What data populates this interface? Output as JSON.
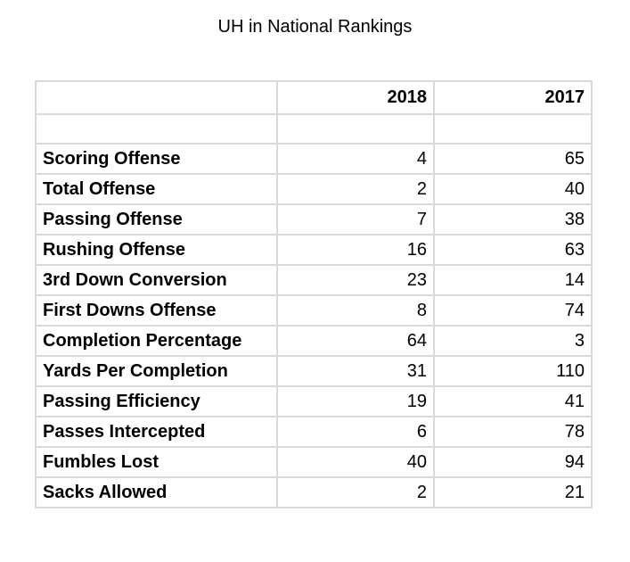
{
  "chart_data": {
    "type": "table",
    "title": "UH in National Rankings",
    "columns": [
      "",
      "2018",
      "2017"
    ],
    "rows": [
      {
        "label": "Scoring Offense",
        "v2018": 4,
        "v2017": 65
      },
      {
        "label": "Total Offense",
        "v2018": 2,
        "v2017": 40
      },
      {
        "label": "Passing Offense",
        "v2018": 7,
        "v2017": 38
      },
      {
        "label": "Rushing Offense",
        "v2018": 16,
        "v2017": 63
      },
      {
        "label": "3rd Down Conversion",
        "v2018": 23,
        "v2017": 14
      },
      {
        "label": "First Downs Offense",
        "v2018": 8,
        "v2017": 74
      },
      {
        "label": "Completion Percentage",
        "v2018": 64,
        "v2017": 3
      },
      {
        "label": "Yards Per Completion",
        "v2018": 31,
        "v2017": 110
      },
      {
        "label": "Passing Efficiency",
        "v2018": 19,
        "v2017": 41
      },
      {
        "label": "Passes Intercepted",
        "v2018": 6,
        "v2017": 78
      },
      {
        "label": "Fumbles Lost",
        "v2018": 40,
        "v2017": 94
      },
      {
        "label": "Sacks Allowed",
        "v2018": 2,
        "v2017": 21
      }
    ]
  },
  "colors": {
    "grid": "#d9d9d9",
    "text": "#000000",
    "background": "#ffffff"
  }
}
